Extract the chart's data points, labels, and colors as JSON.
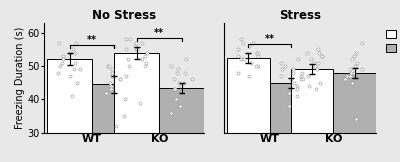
{
  "title_left": "No Stress",
  "title_right": "Stress",
  "ylabel": "Freezing Duration (s)",
  "ylim": [
    30,
    63
  ],
  "yticks": [
    30,
    40,
    50,
    60
  ],
  "bar_means_npe": [
    52.0,
    54.0,
    52.5,
    49.0
  ],
  "bar_means_pe": [
    44.5,
    43.5,
    45.0,
    48.0
  ],
  "bar_errors_npe": [
    1.8,
    1.8,
    1.5,
    1.5
  ],
  "bar_errors_pe": [
    2.5,
    1.5,
    1.5,
    1.5
  ],
  "significance": [
    true,
    true,
    true,
    false
  ],
  "npe_color": "#ffffff",
  "pe_color": "#b0b0b0",
  "edge_color": "#000000",
  "dot_color": "#909090",
  "background_color": "#e8e8e8",
  "npe_dots": [
    [
      57,
      57,
      55,
      54,
      54,
      53,
      52,
      51,
      51,
      50,
      49,
      49,
      48,
      47,
      45,
      41
    ],
    [
      58,
      58,
      57,
      57,
      56,
      55,
      55,
      55,
      54,
      53,
      52,
      52,
      51,
      50,
      50,
      39
    ],
    [
      58,
      57,
      57,
      56,
      55,
      54,
      54,
      53,
      53,
      52,
      52,
      51,
      50,
      50,
      48,
      47
    ],
    [
      55,
      54,
      54,
      53,
      53,
      52,
      51,
      51,
      50,
      49,
      48,
      47,
      46,
      45,
      44,
      43
    ]
  ],
  "pe_dots": [
    [
      56,
      50,
      50,
      49,
      48,
      47,
      47,
      46,
      46,
      45,
      44,
      43,
      42,
      40,
      35,
      32
    ],
    [
      52,
      50,
      49,
      48,
      48,
      46,
      46,
      45,
      45,
      44,
      43,
      43,
      42,
      40,
      38,
      36
    ],
    [
      52,
      51,
      50,
      49,
      49,
      48,
      47,
      47,
      46,
      46,
      45,
      44,
      43,
      42,
      41,
      38
    ],
    [
      57,
      54,
      53,
      52,
      51,
      50,
      49,
      49,
      48,
      48,
      47,
      47,
      46,
      45,
      45,
      34
    ]
  ]
}
